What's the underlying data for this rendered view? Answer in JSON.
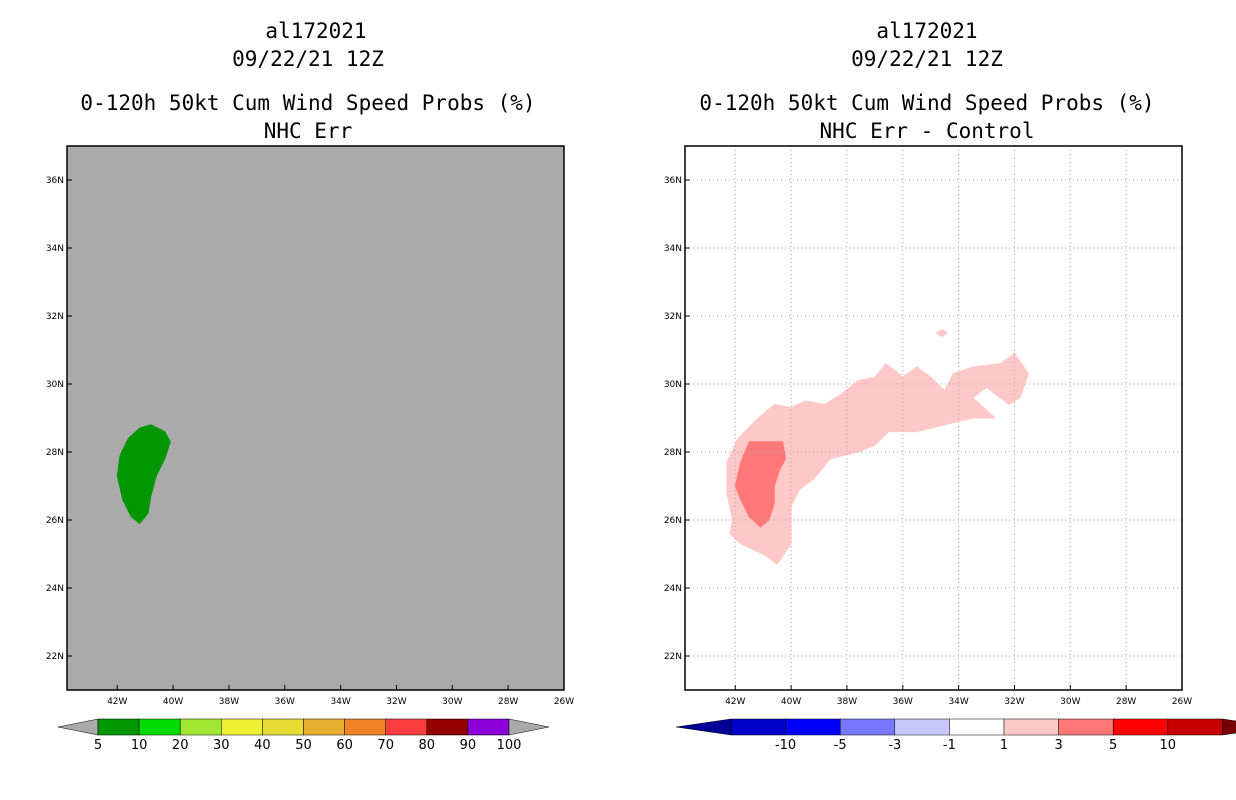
{
  "chart_data": [
    {
      "type": "heatmap",
      "storm_id": "al172021",
      "datetime": "09/22/21 12Z",
      "title": "0-120h 50kt Cum Wind Speed Probs (%)",
      "subtitle": "NHC Err",
      "xlabel": "",
      "ylabel": "",
      "xlim": [
        -43.8,
        -26
      ],
      "ylim": [
        21,
        37
      ],
      "x_ticks": [
        -42,
        -40,
        -38,
        -36,
        -34,
        -32,
        -30,
        -28,
        -26
      ],
      "x_tick_labels": [
        "42W",
        "40W",
        "38W",
        "36W",
        "34W",
        "32W",
        "30W",
        "28W",
        "26W"
      ],
      "y_ticks": [
        22,
        24,
        26,
        28,
        30,
        32,
        34,
        36
      ],
      "y_tick_labels": [
        "22N",
        "24N",
        "26N",
        "28N",
        "30N",
        "32N",
        "34N",
        "36N"
      ],
      "grid": false,
      "background_color": "#aaaaaa",
      "colorbar": {
        "labels": [
          "5",
          "10",
          "20",
          "30",
          "40",
          "50",
          "60",
          "70",
          "80",
          "90",
          "100"
        ],
        "colors": [
          "#009600",
          "#00dc00",
          "#a0e632",
          "#f0f032",
          "#e6dc32",
          "#e6af2d",
          "#f08228",
          "#fa3c3c",
          "#960000",
          "#8c00dc"
        ],
        "under_color": "#aaaaaa",
        "over_color": "#aaaaaa"
      },
      "regions": [
        {
          "level": "5-10",
          "color": "#009600",
          "lonlat": [
            [
              -40.8,
              28.8
            ],
            [
              -40.3,
              28.6
            ],
            [
              -40.1,
              28.3
            ],
            [
              -40.3,
              27.8
            ],
            [
              -40.6,
              27.3
            ],
            [
              -40.8,
              26.7
            ],
            [
              -40.9,
              26.2
            ],
            [
              -41.2,
              25.9
            ],
            [
              -41.5,
              26.1
            ],
            [
              -41.8,
              26.6
            ],
            [
              -42.0,
              27.3
            ],
            [
              -41.9,
              27.9
            ],
            [
              -41.6,
              28.4
            ],
            [
              -41.2,
              28.7
            ]
          ]
        }
      ]
    },
    {
      "type": "heatmap",
      "storm_id": "al172021",
      "datetime": "09/22/21 12Z",
      "title": "0-120h 50kt Cum Wind Speed Probs (%)",
      "subtitle": "NHC Err - Control",
      "xlabel": "",
      "ylabel": "",
      "xlim": [
        -43.8,
        -26
      ],
      "ylim": [
        21,
        37
      ],
      "x_ticks": [
        -42,
        -40,
        -38,
        -36,
        -34,
        -32,
        -30,
        -28,
        -26
      ],
      "x_tick_labels": [
        "42W",
        "40W",
        "38W",
        "36W",
        "34W",
        "32W",
        "30W",
        "28W",
        "26W"
      ],
      "y_ticks": [
        22,
        24,
        26,
        28,
        30,
        32,
        34,
        36
      ],
      "y_tick_labels": [
        "22N",
        "24N",
        "26N",
        "28N",
        "30N",
        "32N",
        "34N",
        "36N"
      ],
      "grid": true,
      "background_color": "#ffffff",
      "colorbar": {
        "labels": [
          "-10",
          "-5",
          "-3",
          "-1",
          "1",
          "3",
          "5",
          "10"
        ],
        "colors": [
          "#0000c8",
          "#0000ff",
          "#7878ff",
          "#c8c8ff",
          "#ffffff",
          "#ffc8c8",
          "#ff7878",
          "#ff0000",
          "#c80000"
        ],
        "under_color": "#000096",
        "over_color": "#780000"
      },
      "regions": [
        {
          "level": "1-3",
          "color": "#ffc8c8",
          "lonlat": [
            [
              -42.1,
              26.0
            ],
            [
              -42.3,
              26.8
            ],
            [
              -42.3,
              27.7
            ],
            [
              -41.9,
              28.4
            ],
            [
              -41.3,
              28.9
            ],
            [
              -40.6,
              29.4
            ],
            [
              -40.0,
              29.3
            ],
            [
              -39.5,
              29.5
            ],
            [
              -38.8,
              29.4
            ],
            [
              -38.2,
              29.7
            ],
            [
              -37.6,
              30.1
            ],
            [
              -37.0,
              30.2
            ],
            [
              -36.6,
              30.6
            ],
            [
              -36.0,
              30.2
            ],
            [
              -35.5,
              30.5
            ],
            [
              -35.0,
              30.2
            ],
            [
              -34.5,
              29.8
            ],
            [
              -34.2,
              30.3
            ],
            [
              -33.5,
              30.5
            ],
            [
              -32.5,
              30.6
            ],
            [
              -32.0,
              30.9
            ],
            [
              -31.5,
              30.3
            ],
            [
              -31.8,
              29.6
            ],
            [
              -32.2,
              29.4
            ],
            [
              -33.0,
              29.9
            ],
            [
              -33.5,
              29.6
            ],
            [
              -32.7,
              29.0
            ],
            [
              -33.5,
              29.0
            ],
            [
              -34.5,
              28.8
            ],
            [
              -35.5,
              28.6
            ],
            [
              -36.5,
              28.6
            ],
            [
              -37.0,
              28.2
            ],
            [
              -37.6,
              28.0
            ],
            [
              -38.6,
              27.8
            ],
            [
              -39.2,
              27.2
            ],
            [
              -39.7,
              26.9
            ],
            [
              -40.0,
              26.4
            ],
            [
              -40.0,
              25.9
            ],
            [
              -40.0,
              25.3
            ],
            [
              -40.5,
              24.7
            ],
            [
              -41.0,
              25.0
            ],
            [
              -41.8,
              25.3
            ],
            [
              -42.2,
              25.6
            ]
          ]
        },
        {
          "level": "1-3",
          "color": "#ffc8c8",
          "lonlat": [
            [
              -34.6,
              31.6
            ],
            [
              -34.4,
              31.5
            ],
            [
              -34.6,
              31.4
            ],
            [
              -34.8,
              31.5
            ]
          ]
        },
        {
          "level": "3-5",
          "color": "#ff7878",
          "lonlat": [
            [
              -41.5,
              28.3
            ],
            [
              -40.3,
              28.3
            ],
            [
              -40.2,
              27.8
            ],
            [
              -40.4,
              27.5
            ],
            [
              -40.6,
              27.0
            ],
            [
              -40.6,
              26.5
            ],
            [
              -40.8,
              26.0
            ],
            [
              -41.1,
              25.8
            ],
            [
              -41.5,
              26.1
            ],
            [
              -41.8,
              26.6
            ],
            [
              -42.0,
              27.0
            ],
            [
              -41.8,
              27.7
            ]
          ]
        }
      ]
    }
  ]
}
